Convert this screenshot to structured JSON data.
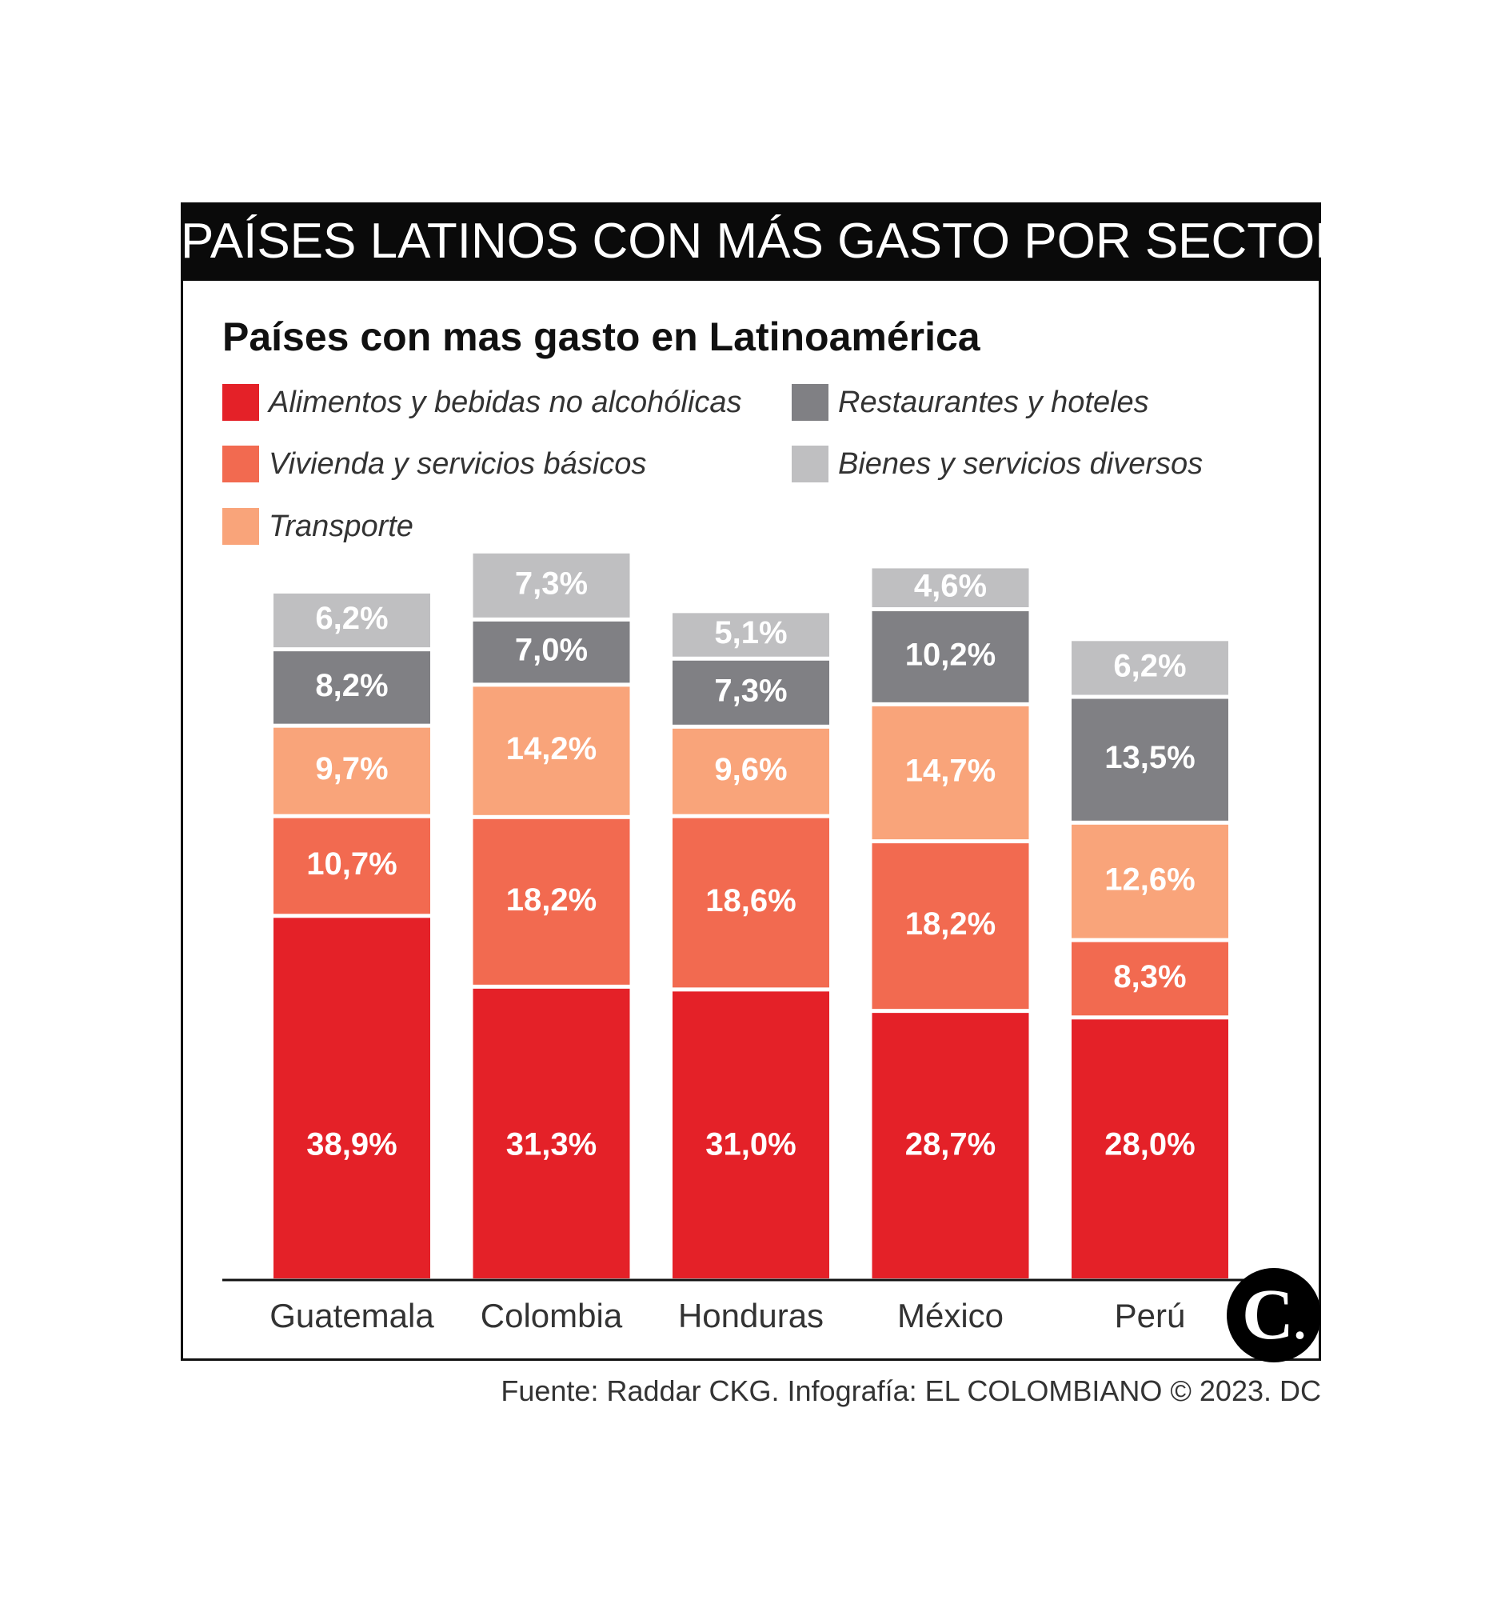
{
  "header": {
    "title": "PAÍSES LATINOS CON MÁS GASTO POR SECTOR"
  },
  "source": "Fuente: Raddar CKG. Infografía: EL COLOMBIANO © 2023. DC",
  "logo": {
    "letter": "C",
    "dot": "."
  },
  "colors": {
    "alimentos": "#e42128",
    "vivienda": "#f26a50",
    "transporte": "#f9a47a",
    "restaurantes": "#808084",
    "bienes": "#bfbfc1"
  },
  "legend": [
    {
      "label": "Alimentos y bebidas no alcohólicas",
      "color": "#e42128"
    },
    {
      "label": "Restaurantes y hoteles",
      "color": "#808084"
    },
    {
      "label": "Vivienda y servicios básicos",
      "color": "#f26a50"
    },
    {
      "label": "Bienes y servicios diversos",
      "color": "#bfbfc1"
    },
    {
      "label": "Transporte",
      "color": "#f9a47a"
    }
  ],
  "chart_data": {
    "type": "bar",
    "stacked": true,
    "title": "Países con mas gasto en Latinoamérica",
    "categories": [
      "Guatemala",
      "Colombia",
      "Honduras",
      "México",
      "Perú"
    ],
    "series": [
      {
        "name": "Alimentos y bebidas no alcohólicas",
        "color": "#e42128",
        "values": [
          38.9,
          31.3,
          31.0,
          28.7,
          28.0
        ],
        "labels": [
          "38,9%",
          "31,3%",
          "31,0%",
          "28,7%",
          "28,0%"
        ]
      },
      {
        "name": "Vivienda y servicios básicos",
        "color": "#f26a50",
        "values": [
          10.7,
          18.2,
          18.6,
          18.2,
          8.3
        ],
        "labels": [
          "10,7%",
          "18,2%",
          "18,6%",
          "18,2%",
          "8,3%"
        ]
      },
      {
        "name": "Transporte",
        "color": "#f9a47a",
        "values": [
          9.7,
          14.2,
          9.6,
          14.7,
          12.6
        ],
        "labels": [
          "9,7%",
          "14,2%",
          "9,6%",
          "14,7%",
          "12,6%"
        ]
      },
      {
        "name": "Restaurantes y hoteles",
        "color": "#808084",
        "values": [
          8.2,
          7.0,
          7.3,
          10.2,
          13.5
        ],
        "labels": [
          "8,2%",
          "7,0%",
          "7,3%",
          "10,2%",
          "13,5%"
        ]
      },
      {
        "name": "Bienes y servicios diversos",
        "color": "#bfbfc1",
        "values": [
          6.2,
          7.3,
          5.1,
          4.6,
          6.2
        ],
        "labels": [
          "6,2%",
          "7,3%",
          "5,1%",
          "4,6%",
          "6,2%"
        ]
      }
    ],
    "grid": false,
    "legend_position": "top-left"
  }
}
